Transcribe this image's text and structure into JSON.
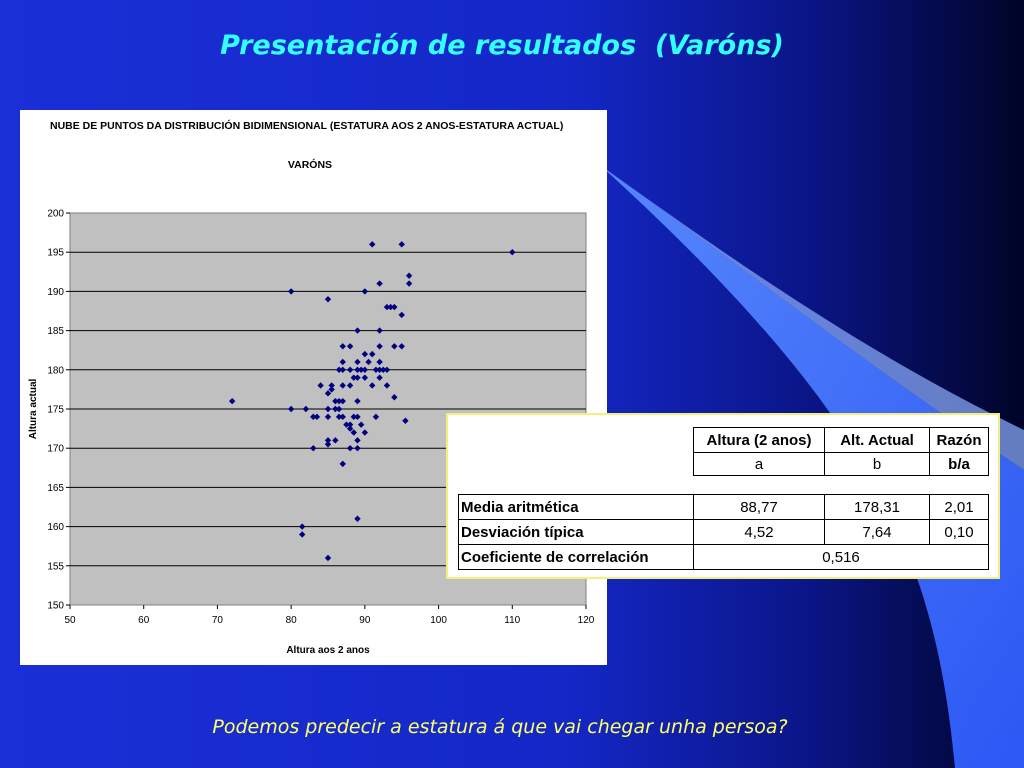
{
  "slide": {
    "title": "Presentación de resultados  (Varóns)",
    "footer_question": "Podemos predecir a estatura á que vai chegar unha persoa?"
  },
  "colors": {
    "title": "#33ffff",
    "footer": "#ffff66",
    "plot_area": "#c0c0c0",
    "points": "#000080"
  },
  "chart_data": {
    "type": "scatter",
    "title": "NUBE DE PUNTOS DA DISTRIBUCIÓN BIDIMENSIONAL (ESTATURA AOS 2 ANOS-ESTATURA ACTUAL)",
    "subtitle": "VARÓNS",
    "xlabel": "Altura aos 2 anos",
    "ylabel": "Altura actual",
    "xlim": [
      50,
      120
    ],
    "ylim": [
      150,
      200
    ],
    "xticks": [
      50,
      60,
      70,
      80,
      90,
      100,
      110,
      120
    ],
    "yticks": [
      150,
      155,
      160,
      165,
      170,
      175,
      180,
      185,
      190,
      195,
      200
    ],
    "grid": "horizontal",
    "series": [
      {
        "points": [
          [
            72,
            176
          ],
          [
            80,
            190
          ],
          [
            80,
            175
          ],
          [
            81.5,
            160
          ],
          [
            81.5,
            159
          ],
          [
            82,
            175
          ],
          [
            83,
            174
          ],
          [
            83,
            170
          ],
          [
            83.5,
            174
          ],
          [
            84,
            178
          ],
          [
            85,
            189
          ],
          [
            85,
            177
          ],
          [
            85,
            175
          ],
          [
            85,
            174
          ],
          [
            85,
            171
          ],
          [
            85,
            170.5
          ],
          [
            85,
            156
          ],
          [
            85.5,
            178
          ],
          [
            85.5,
            177.5
          ],
          [
            86,
            176
          ],
          [
            86,
            175
          ],
          [
            86,
            171
          ],
          [
            86.5,
            180
          ],
          [
            86.5,
            176
          ],
          [
            86.5,
            175
          ],
          [
            86.5,
            174
          ],
          [
            87,
            183
          ],
          [
            87,
            181
          ],
          [
            87,
            180
          ],
          [
            87,
            178
          ],
          [
            87,
            176
          ],
          [
            87,
            174
          ],
          [
            87,
            168
          ],
          [
            87.5,
            173
          ],
          [
            88,
            183
          ],
          [
            88,
            180
          ],
          [
            88,
            178
          ],
          [
            88,
            173
          ],
          [
            88,
            172.5
          ],
          [
            88,
            170
          ],
          [
            88.5,
            179
          ],
          [
            88.5,
            174
          ],
          [
            88.5,
            172
          ],
          [
            89,
            185
          ],
          [
            89,
            181
          ],
          [
            89,
            180
          ],
          [
            89,
            179
          ],
          [
            89,
            176
          ],
          [
            89,
            174
          ],
          [
            89,
            171
          ],
          [
            89,
            170
          ],
          [
            89,
            161
          ],
          [
            89.5,
            180
          ],
          [
            89.5,
            173
          ],
          [
            90,
            190
          ],
          [
            90,
            182
          ],
          [
            90,
            180
          ],
          [
            90,
            179
          ],
          [
            90,
            172
          ],
          [
            90.5,
            181
          ],
          [
            91,
            196
          ],
          [
            91,
            182
          ],
          [
            91,
            178
          ],
          [
            91.5,
            180
          ],
          [
            91.5,
            174
          ],
          [
            92,
            191
          ],
          [
            92,
            185
          ],
          [
            92,
            183
          ],
          [
            92,
            181
          ],
          [
            92,
            180
          ],
          [
            92,
            179
          ],
          [
            92.5,
            180
          ],
          [
            93,
            188
          ],
          [
            93,
            180
          ],
          [
            93,
            178
          ],
          [
            93.5,
            188
          ],
          [
            94,
            188
          ],
          [
            94,
            183
          ],
          [
            94,
            176.5
          ],
          [
            95,
            196
          ],
          [
            95,
            187
          ],
          [
            95,
            183
          ],
          [
            95.5,
            173.5
          ],
          [
            96,
            192
          ],
          [
            96,
            191
          ],
          [
            110,
            195
          ]
        ]
      }
    ]
  },
  "stats_table": {
    "headers": [
      "Altura (2 anos)",
      "Alt. Actual",
      "Razón"
    ],
    "subheaders": [
      "a",
      "b",
      "b/a"
    ],
    "rows": [
      {
        "label": "Media aritmética",
        "values": [
          "88,77",
          "178,31",
          "2,01"
        ]
      },
      {
        "label": "Desviación típica",
        "values": [
          "4,52",
          "7,64",
          "0,10"
        ]
      }
    ],
    "correlation_label": "Coeficiente de correlación",
    "correlation_value": "0,516"
  }
}
